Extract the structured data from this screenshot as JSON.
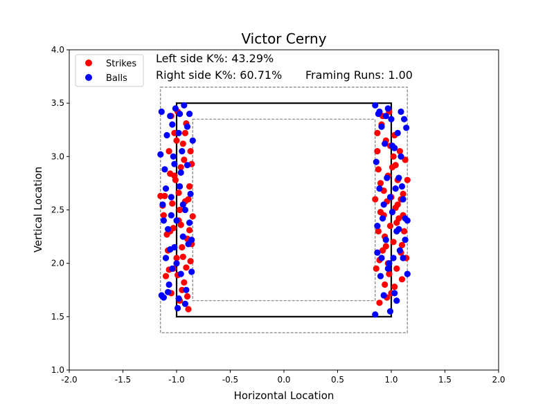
{
  "chart_data": {
    "type": "scatter",
    "title": "Victor Cerny",
    "xlabel": "Horizontal Location",
    "ylabel": "Vertical Location",
    "xlim": [
      -2.0,
      2.0
    ],
    "ylim": [
      1.0,
      4.0
    ],
    "x_ticks": [
      "-2.0",
      "-1.5",
      "-1.0",
      "-0.5",
      "0.0",
      "0.5",
      "1.0",
      "1.5",
      "2.0"
    ],
    "y_ticks": [
      "1.0",
      "1.5",
      "2.0",
      "2.5",
      "3.0",
      "3.5",
      "4.0"
    ],
    "grid": false,
    "legend": {
      "placement": "top-left",
      "entries": [
        "Strikes",
        "Balls"
      ]
    },
    "colors": {
      "strikes": "#ff0000",
      "balls": "#0000ff",
      "zone": "#000000",
      "shadow": "#808080"
    },
    "annotations": {
      "left_k": "Left side K%: 43.29%",
      "right_k": "Right side K%: 60.71%",
      "framing": "Framing Runs: 1.00"
    },
    "strike_zone": {
      "x": [
        -1.0,
        1.0
      ],
      "y": [
        1.5,
        3.5
      ]
    },
    "outer_shadow": {
      "x": [
        -1.15,
        1.15
      ],
      "y": [
        1.35,
        3.65
      ]
    },
    "inner_shadow": {
      "x": [
        -0.85,
        0.85
      ],
      "y": [
        1.65,
        3.35
      ]
    },
    "series": [
      {
        "name": "Strikes",
        "points": [
          [
            -1.15,
            2.63
          ],
          [
            -1.12,
            2.45
          ],
          [
            -1.1,
            1.88
          ],
          [
            -1.08,
            2.12
          ],
          [
            -1.07,
            3.05
          ],
          [
            -1.06,
            2.3
          ],
          [
            -1.05,
            1.72
          ],
          [
            -1.04,
            2.56
          ],
          [
            -1.03,
            1.95
          ],
          [
            -1.02,
            3.22
          ],
          [
            -1.01,
            2.78
          ],
          [
            -1.0,
            2.05
          ],
          [
            -0.99,
            3.42
          ],
          [
            -0.98,
            2.4
          ],
          [
            -0.97,
            1.65
          ],
          [
            -0.96,
            2.9
          ],
          [
            -0.95,
            2.15
          ],
          [
            -0.94,
            3.12
          ],
          [
            -0.93,
            1.82
          ],
          [
            -0.92,
            2.58
          ],
          [
            -0.91,
            3.31
          ],
          [
            -0.9,
            2.23
          ],
          [
            -0.89,
            1.57
          ],
          [
            -0.88,
            2.72
          ],
          [
            -0.87,
            2.02
          ],
          [
            -0.86,
            2.93
          ],
          [
            -0.85,
            2.44
          ],
          [
            -1.11,
            2.63
          ],
          [
            -1.06,
            2.84
          ],
          [
            -0.97,
            2.5
          ],
          [
            -0.92,
            3.22
          ],
          [
            -1.0,
            3.15
          ],
          [
            -0.89,
            2.6
          ],
          [
            -0.95,
            1.75
          ],
          [
            -1.03,
            2.33
          ],
          [
            -0.86,
            2.18
          ],
          [
            -0.91,
            1.96
          ],
          [
            -0.98,
            2.66
          ],
          [
            -1.05,
            3.38
          ],
          [
            -0.94,
            2.06
          ],
          [
            -0.87,
            3.05
          ],
          [
            -1.09,
            2.27
          ],
          [
            -0.99,
            1.89
          ],
          [
            -0.96,
            2.36
          ],
          [
            -1.02,
            2.82
          ],
          [
            -0.9,
            1.69
          ],
          [
            -0.93,
            2.97
          ],
          [
            -1.07,
            1.94
          ],
          [
            -0.88,
            2.31
          ],
          [
            -1.13,
            2.54
          ],
          [
            0.85,
            2.6
          ],
          [
            0.86,
            1.95
          ],
          [
            0.87,
            3.05
          ],
          [
            0.88,
            2.3
          ],
          [
            0.89,
            1.63
          ],
          [
            0.9,
            2.75
          ],
          [
            0.91,
            3.3
          ],
          [
            0.92,
            2.12
          ],
          [
            0.93,
            2.45
          ],
          [
            0.94,
            1.8
          ],
          [
            0.95,
            3.15
          ],
          [
            0.96,
            2.58
          ],
          [
            0.97,
            2.0
          ],
          [
            0.98,
            3.42
          ],
          [
            0.99,
            2.35
          ],
          [
            1.0,
            1.72
          ],
          [
            1.01,
            2.9
          ],
          [
            1.02,
            2.2
          ],
          [
            1.03,
            3.2
          ],
          [
            1.04,
            2.52
          ],
          [
            1.05,
            1.95
          ],
          [
            1.06,
            2.78
          ],
          [
            1.07,
            2.42
          ],
          [
            1.08,
            3.05
          ],
          [
            1.09,
            2.1
          ],
          [
            1.1,
            1.85
          ],
          [
            1.11,
            2.65
          ],
          [
            1.12,
            2.3
          ],
          [
            1.13,
            2.97
          ],
          [
            1.14,
            2.05
          ],
          [
            1.15,
            2.78
          ],
          [
            0.88,
            2.88
          ],
          [
            0.92,
            3.38
          ],
          [
            0.96,
            1.68
          ],
          [
            1.0,
            2.62
          ],
          [
            1.04,
            2.92
          ],
          [
            0.9,
            2.48
          ],
          [
            0.94,
            2.25
          ],
          [
            0.98,
            1.9
          ],
          [
            1.02,
            3.0
          ],
          [
            1.06,
            2.55
          ],
          [
            1.1,
            2.17
          ],
          [
            0.87,
            3.22
          ],
          [
            0.93,
            2.68
          ],
          [
            0.99,
            3.1
          ],
          [
            1.05,
            2.38
          ],
          [
            1.11,
            2.45
          ],
          [
            0.89,
            2.03
          ],
          [
            0.97,
            2.82
          ],
          [
            1.03,
            1.78
          ],
          [
            1.09,
            2.6
          ],
          [
            0.95,
            2.16
          ]
        ]
      },
      {
        "name": "Balls",
        "points": [
          [
            -1.14,
            3.42
          ],
          [
            -1.13,
            2.55
          ],
          [
            -1.12,
            1.68
          ],
          [
            -1.11,
            2.88
          ],
          [
            -1.1,
            2.05
          ],
          [
            -1.09,
            3.2
          ],
          [
            -1.08,
            2.32
          ],
          [
            -1.07,
            1.8
          ],
          [
            -1.06,
            3.38
          ],
          [
            -1.05,
            2.62
          ],
          [
            -1.04,
            1.95
          ],
          [
            -1.03,
            3.0
          ],
          [
            -1.02,
            2.15
          ],
          [
            -1.01,
            3.45
          ],
          [
            -1.0,
            2.4
          ],
          [
            -0.99,
            1.58
          ],
          [
            -0.98,
            3.22
          ],
          [
            -0.97,
            2.72
          ],
          [
            -0.96,
            1.9
          ],
          [
            -0.95,
            3.05
          ],
          [
            -0.94,
            2.25
          ],
          [
            -0.93,
            3.48
          ],
          [
            -0.92,
            2.5
          ],
          [
            -0.91,
            1.75
          ],
          [
            -0.9,
            2.92
          ],
          [
            -0.89,
            2.18
          ],
          [
            -0.88,
            3.4
          ],
          [
            -0.87,
            2.65
          ],
          [
            -0.86,
            1.92
          ],
          [
            -0.85,
            3.15
          ],
          [
            -1.15,
            3.02
          ],
          [
            -1.12,
            2.4
          ],
          [
            -1.08,
            1.73
          ],
          [
            -1.04,
            3.3
          ],
          [
            -1.0,
            2.0
          ],
          [
            -0.96,
            2.85
          ],
          [
            -0.92,
            1.62
          ],
          [
            -0.88,
            2.38
          ],
          [
            -1.1,
            2.7
          ],
          [
            -1.06,
            2.13
          ],
          [
            -1.02,
            2.93
          ],
          [
            -0.98,
            1.67
          ],
          [
            -0.94,
            2.55
          ],
          [
            -0.9,
            3.28
          ],
          [
            -0.86,
            2.22
          ],
          [
            -1.14,
            1.7
          ],
          [
            -0.97,
            3.4
          ],
          [
            -1.05,
            2.45
          ],
          [
            0.85,
            3.48
          ],
          [
            0.86,
            2.95
          ],
          [
            0.87,
            2.1
          ],
          [
            0.88,
            3.4
          ],
          [
            0.89,
            2.7
          ],
          [
            0.9,
            1.88
          ],
          [
            0.91,
            3.28
          ],
          [
            0.92,
            2.42
          ],
          [
            0.93,
            1.7
          ],
          [
            0.94,
            3.12
          ],
          [
            0.95,
            2.22
          ],
          [
            0.96,
            2.8
          ],
          [
            0.97,
            3.45
          ],
          [
            0.98,
            2.0
          ],
          [
            0.99,
            1.55
          ],
          [
            1.0,
            3.35
          ],
          [
            1.01,
            2.48
          ],
          [
            1.02,
            2.05
          ],
          [
            1.03,
            3.08
          ],
          [
            1.04,
            2.7
          ],
          [
            1.05,
            1.65
          ],
          [
            1.06,
            3.22
          ],
          [
            1.07,
            2.32
          ],
          [
            1.08,
            2.12
          ],
          [
            1.09,
            3.0
          ],
          [
            1.1,
            2.72
          ],
          [
            1.11,
            2.05
          ],
          [
            1.12,
            3.35
          ],
          [
            1.13,
            2.42
          ],
          [
            1.14,
            3.27
          ],
          [
            1.15,
            1.9
          ],
          [
            0.89,
            3.42
          ],
          [
            0.93,
            2.55
          ],
          [
            0.97,
            1.95
          ],
          [
            1.01,
            3.1
          ],
          [
            1.05,
            2.3
          ],
          [
            1.09,
            3.42
          ],
          [
            1.13,
            2.22
          ],
          [
            0.87,
            2.35
          ],
          [
            0.91,
            2.05
          ],
          [
            0.95,
            3.38
          ],
          [
            0.99,
            2.62
          ],
          [
            1.03,
            1.72
          ],
          [
            1.07,
            2.8
          ],
          [
            1.11,
            2.6
          ],
          [
            0.85,
            1.52
          ],
          [
            1.15,
            2.4
          ]
        ]
      }
    ]
  }
}
